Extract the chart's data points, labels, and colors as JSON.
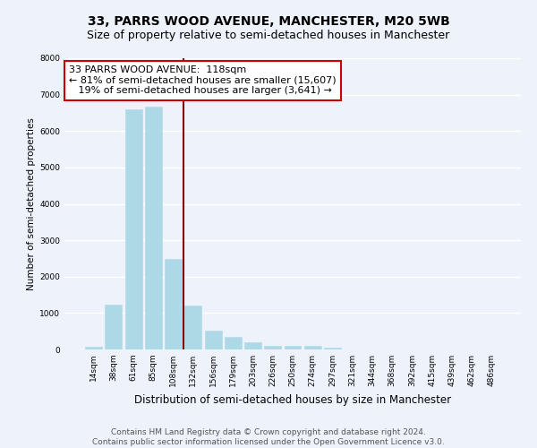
{
  "title": "33, PARRS WOOD AVENUE, MANCHESTER, M20 5WB",
  "subtitle": "Size of property relative to semi-detached houses in Manchester",
  "xlabel": "Distribution of semi-detached houses by size in Manchester",
  "ylabel": "Number of semi-detached properties",
  "bar_labels": [
    "14sqm",
    "38sqm",
    "61sqm",
    "85sqm",
    "108sqm",
    "132sqm",
    "156sqm",
    "179sqm",
    "203sqm",
    "226sqm",
    "250sqm",
    "274sqm",
    "297sqm",
    "321sqm",
    "344sqm",
    "368sqm",
    "392sqm",
    "415sqm",
    "439sqm",
    "462sqm",
    "486sqm"
  ],
  "bar_values": [
    70,
    1230,
    6600,
    6680,
    2480,
    1200,
    520,
    340,
    185,
    100,
    100,
    90,
    50,
    0,
    0,
    0,
    0,
    0,
    0,
    0,
    0
  ],
  "bar_color": "#add8e6",
  "bar_edgecolor": "#b0d8e8",
  "property_line_index": 4,
  "property_line_color": "#8b0000",
  "ylim": [
    0,
    8000
  ],
  "yticks": [
    0,
    1000,
    2000,
    3000,
    4000,
    5000,
    6000,
    7000,
    8000
  ],
  "annotation_line1": "33 PARRS WOOD AVENUE:  118sqm",
  "annotation_line2": "← 81% of semi-detached houses are smaller (15,607)",
  "annotation_line3": "   19% of semi-detached houses are larger (3,641) →",
  "annotation_box_color": "#ffffff",
  "annotation_box_edgecolor": "#cc0000",
  "footer_text": "Contains HM Land Registry data © Crown copyright and database right 2024.\nContains public sector information licensed under the Open Government Licence v3.0.",
  "background_color": "#eef2fb",
  "grid_color": "#ffffff",
  "title_fontsize": 10,
  "subtitle_fontsize": 9,
  "xlabel_fontsize": 8.5,
  "ylabel_fontsize": 7.5,
  "tick_fontsize": 6.5,
  "annotation_fontsize": 8,
  "footer_fontsize": 6.5
}
